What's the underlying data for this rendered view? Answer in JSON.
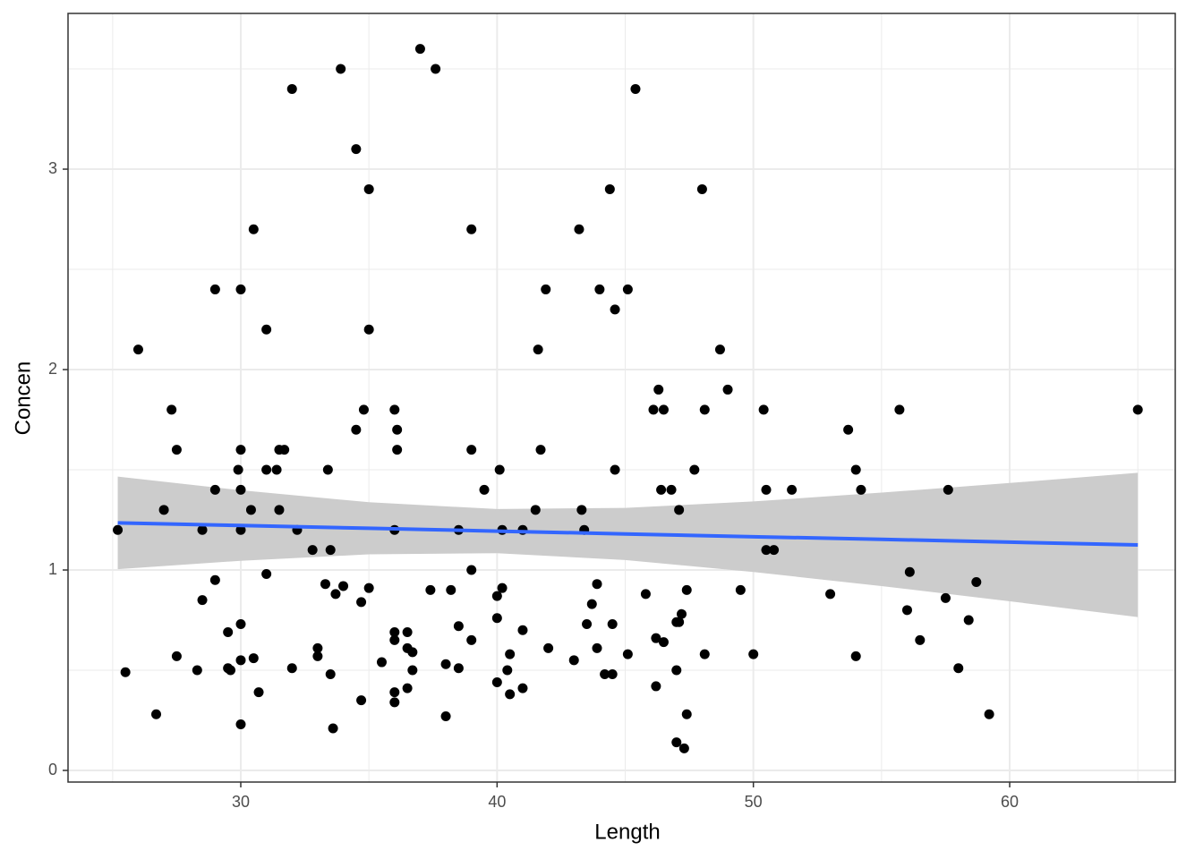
{
  "chart_data": {
    "type": "scatter",
    "x_label": "Length",
    "y_label": "Concen",
    "xlim": [
      23.26,
      66.46
    ],
    "ylim": [
      -0.058,
      3.777
    ],
    "xticks": [
      30,
      40,
      50,
      60
    ],
    "yticks": [
      0,
      1,
      2,
      3
    ],
    "x_minor_breaks": [
      25,
      35,
      45,
      55,
      65
    ],
    "y_minor_breaks": [
      0.5,
      1.5,
      2.5,
      3.5
    ],
    "grid": true,
    "color": "#000000",
    "x": [
      37,
      33.9,
      37.6,
      32,
      45.4,
      34.5,
      35,
      44.4,
      48,
      30.5,
      39,
      43.2,
      29,
      30,
      41.9,
      44,
      45.1,
      44.6,
      31,
      35,
      26,
      41.6,
      48.7,
      46.3,
      49,
      27.3,
      34.8,
      36,
      46.1,
      46.5,
      48.1,
      50.4,
      55.7,
      65,
      36.1,
      34.5,
      53.7,
      27.5,
      30,
      31.5,
      31.7,
      36.1,
      39,
      41.7,
      29.9,
      31,
      31.4,
      33.4,
      40.1,
      44.6,
      47.7,
      54,
      29,
      30,
      39.5,
      46.4,
      46.8,
      50.5,
      51.5,
      54.2,
      57.6,
      27,
      30.4,
      31.5,
      41.5,
      43.3,
      47.1,
      25.2,
      28.5,
      30,
      32.2,
      36,
      38.5,
      40.2,
      41,
      43.4,
      32.8,
      33.5,
      50.5,
      50.8,
      39,
      56.1,
      31,
      29,
      58.7,
      33.3,
      43.9,
      34,
      35,
      40.2,
      37.4,
      38.2,
      47.4,
      49.5,
      33.7,
      45.8,
      53,
      40,
      57.5,
      28.5,
      34.7,
      43.7,
      56,
      47.2,
      40,
      58.4,
      47,
      47.1,
      30,
      43.5,
      44.5,
      38.5,
      41,
      29.5,
      36,
      36.5,
      36,
      39,
      56.5,
      46.2,
      46.5,
      33,
      36.5,
      42,
      43.9,
      36.7,
      40.5,
      45.1,
      48.1,
      50,
      27.5,
      33,
      54,
      30.5,
      30,
      43,
      35.5,
      38,
      29.5,
      29.6,
      32,
      38.5,
      58,
      25.5,
      28.3,
      36.7,
      40.4,
      47,
      33.5,
      44.2,
      44.5,
      40,
      46.2,
      36.5,
      41,
      30.7,
      36,
      40.5,
      34.7,
      36,
      26.7,
      38,
      47.4,
      59.2,
      30,
      33.6,
      47,
      47.3
    ],
    "values": [
      3.6,
      3.5,
      3.5,
      3.4,
      3.4,
      3.1,
      2.9,
      2.9,
      2.9,
      2.7,
      2.7,
      2.7,
      2.4,
      2.4,
      2.4,
      2.4,
      2.4,
      2.3,
      2.2,
      2.2,
      2.1,
      2.1,
      2.1,
      1.9,
      1.9,
      1.8,
      1.8,
      1.8,
      1.8,
      1.8,
      1.8,
      1.8,
      1.8,
      1.8,
      1.7,
      1.7,
      1.7,
      1.6,
      1.6,
      1.6,
      1.6,
      1.6,
      1.6,
      1.6,
      1.5,
      1.5,
      1.5,
      1.5,
      1.5,
      1.5,
      1.5,
      1.5,
      1.4,
      1.4,
      1.4,
      1.4,
      1.4,
      1.4,
      1.4,
      1.4,
      1.4,
      1.3,
      1.3,
      1.3,
      1.3,
      1.3,
      1.3,
      1.2,
      1.2,
      1.2,
      1.2,
      1.2,
      1.2,
      1.2,
      1.2,
      1.2,
      1.1,
      1.1,
      1.1,
      1.1,
      1.0,
      0.99,
      0.98,
      0.95,
      0.94,
      0.93,
      0.93,
      0.92,
      0.91,
      0.91,
      0.9,
      0.9,
      0.9,
      0.9,
      0.88,
      0.88,
      0.88,
      0.87,
      0.86,
      0.85,
      0.84,
      0.83,
      0.8,
      0.78,
      0.76,
      0.75,
      0.74,
      0.74,
      0.73,
      0.73,
      0.73,
      0.72,
      0.7,
      0.69,
      0.69,
      0.69,
      0.65,
      0.65,
      0.65,
      0.66,
      0.64,
      0.61,
      0.61,
      0.61,
      0.61,
      0.59,
      0.58,
      0.58,
      0.58,
      0.58,
      0.57,
      0.57,
      0.57,
      0.56,
      0.55,
      0.55,
      0.54,
      0.53,
      0.51,
      0.5,
      0.51,
      0.51,
      0.51,
      0.49,
      0.5,
      0.5,
      0.5,
      0.5,
      0.48,
      0.48,
      0.48,
      0.44,
      0.42,
      0.41,
      0.41,
      0.39,
      0.39,
      0.38,
      0.35,
      0.34,
      0.28,
      0.27,
      0.28,
      0.28,
      0.23,
      0.21,
      0.14,
      0.11
    ],
    "smooth": {
      "color": "#3366ff",
      "fill": "#cccccc",
      "x": [
        25.2,
        30,
        35,
        40,
        45,
        50,
        55,
        60,
        65
      ],
      "fit": [
        1.235,
        1.222,
        1.208,
        1.194,
        1.18,
        1.166,
        1.153,
        1.139,
        1.125
      ],
      "lower": [
        1.004,
        1.046,
        1.078,
        1.084,
        1.05,
        0.99,
        0.92,
        0.844,
        0.765
      ],
      "upper": [
        1.466,
        1.398,
        1.338,
        1.304,
        1.31,
        1.342,
        1.386,
        1.434,
        1.485
      ]
    }
  }
}
